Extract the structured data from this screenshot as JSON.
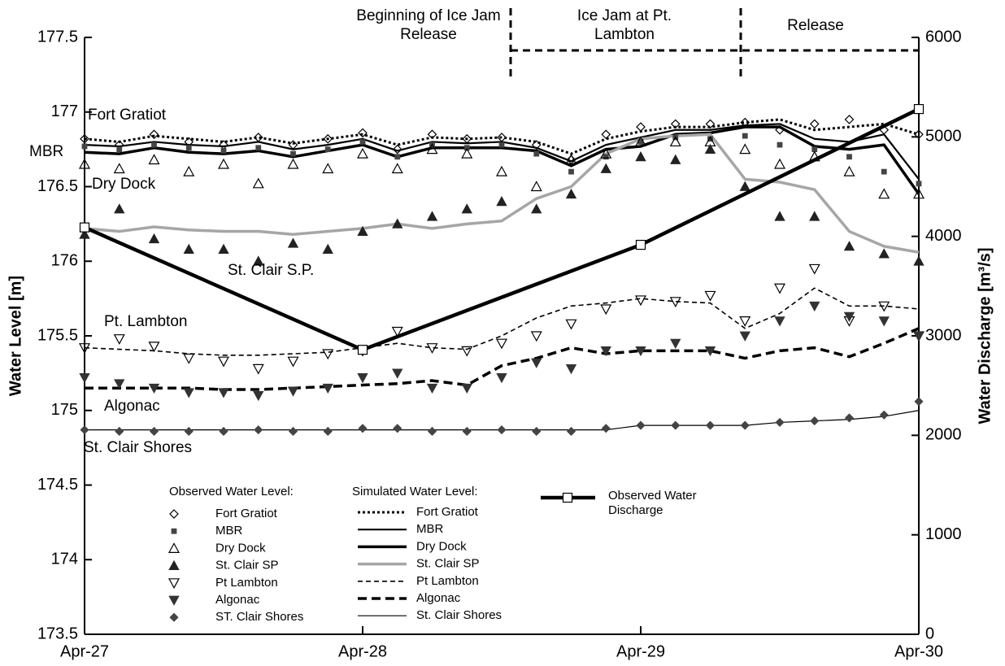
{
  "chart_data": {
    "type": "line",
    "y_title": "Water Level [m]",
    "y2_title": "Water Discharge [m³/s]",
    "phases": [
      "Beginning of Ice Jam Release",
      "Ice Jam at Pt. Lambton",
      "Release"
    ],
    "annotations": [
      "Fort Gratiot",
      "MBR",
      "Dry Dock",
      "St. Clair S.P.",
      "Pt. Lambton",
      "Algonac",
      "St. Clair Shores"
    ],
    "observed_title": "Observed Water Level:",
    "simulated_title": "Simulated Water Level:",
    "xlim": [
      0,
      72
    ],
    "xticks": [
      {
        "value": 0,
        "label": "Apr-27"
      },
      {
        "value": 24,
        "label": "Apr-28"
      },
      {
        "value": 48,
        "label": "Apr-29"
      },
      {
        "value": 72,
        "label": "Apr-30"
      }
    ],
    "ylim": [
      173.5,
      177.5
    ],
    "yticks": [
      173.5,
      174,
      174.5,
      175,
      175.5,
      176,
      176.5,
      177,
      177.5
    ],
    "y2lim": [
      0,
      6000
    ],
    "y2ticks": [
      0,
      1000,
      2000,
      3000,
      4000,
      5000,
      6000
    ],
    "x": [
      0,
      3,
      6,
      9,
      12,
      15,
      18,
      21,
      24,
      27,
      30,
      33,
      36,
      39,
      42,
      45,
      48,
      51,
      54,
      57,
      60,
      63,
      66,
      69,
      72
    ],
    "series": [
      {
        "name": "Fort Gratiot",
        "kind": "observed",
        "marker": "diamond-open",
        "color": "#000000",
        "values": [
          176.82,
          176.78,
          176.85,
          176.8,
          176.78,
          176.83,
          176.78,
          176.82,
          176.86,
          176.75,
          176.85,
          176.82,
          176.83,
          176.78,
          176.68,
          176.85,
          176.9,
          176.92,
          176.92,
          176.93,
          176.88,
          176.92,
          176.95,
          176.88,
          176.85
        ]
      },
      {
        "name": "MBR",
        "kind": "observed",
        "marker": "square",
        "color": "#444444",
        "values": [
          176.77,
          176.75,
          176.78,
          176.76,
          176.74,
          176.76,
          176.72,
          176.75,
          176.8,
          176.7,
          176.78,
          176.76,
          176.78,
          176.72,
          176.6,
          176.7,
          176.8,
          176.83,
          176.82,
          176.84,
          176.78,
          176.75,
          176.7,
          176.6,
          176.52
        ]
      },
      {
        "name": "Dry Dock",
        "kind": "observed",
        "marker": "triangle-open",
        "color": "#000000",
        "values": [
          176.65,
          176.62,
          176.68,
          176.6,
          176.65,
          176.52,
          176.65,
          176.62,
          176.72,
          176.62,
          176.75,
          176.72,
          176.6,
          176.5,
          176.68,
          176.72,
          176.8,
          176.8,
          176.8,
          176.75,
          176.65,
          176.7,
          176.6,
          176.45,
          176.45
        ]
      },
      {
        "name": "St. Clair SP",
        "kind": "observed",
        "marker": "triangle",
        "color": "#222222",
        "values": [
          176.18,
          176.35,
          176.15,
          176.08,
          176.08,
          176.0,
          176.12,
          176.08,
          176.2,
          176.25,
          176.3,
          176.35,
          176.4,
          176.35,
          176.45,
          176.62,
          176.7,
          176.68,
          176.75,
          176.5,
          176.3,
          176.3,
          176.1,
          176.05,
          176.0
        ]
      },
      {
        "name": "Pt Lambton",
        "kind": "observed",
        "marker": "triangle-down-open",
        "color": "#000000",
        "values": [
          175.42,
          175.48,
          175.43,
          175.35,
          175.33,
          175.28,
          175.33,
          175.38,
          175.4,
          175.53,
          175.42,
          175.4,
          175.45,
          175.5,
          175.58,
          175.68,
          175.74,
          175.73,
          175.77,
          175.6,
          175.82,
          175.95,
          175.6,
          175.7,
          175.5
        ]
      },
      {
        "name": "Algonac",
        "kind": "observed",
        "marker": "triangle-down",
        "color": "#333333",
        "values": [
          175.22,
          175.18,
          175.15,
          175.12,
          175.12,
          175.1,
          175.13,
          175.15,
          175.22,
          175.25,
          175.15,
          175.15,
          175.22,
          175.32,
          175.28,
          175.4,
          175.4,
          175.45,
          175.4,
          175.5,
          175.6,
          175.7,
          175.63,
          175.6,
          175.5
        ]
      },
      {
        "name": "ST. Clair Shores",
        "kind": "observed",
        "marker": "diamond",
        "color": "#444444",
        "values": [
          174.87,
          174.86,
          174.86,
          174.86,
          174.86,
          174.87,
          174.86,
          174.86,
          174.88,
          174.88,
          174.86,
          174.86,
          174.87,
          174.86,
          174.86,
          174.88,
          174.9,
          174.9,
          174.9,
          174.9,
          174.92,
          174.93,
          174.95,
          174.97,
          175.06
        ]
      },
      {
        "name": "Fort Gratiot",
        "kind": "simulated",
        "style": "dotted",
        "color": "#000000",
        "values": [
          176.82,
          176.8,
          176.84,
          176.82,
          176.8,
          176.83,
          176.79,
          176.82,
          176.85,
          176.78,
          176.83,
          176.82,
          176.83,
          176.8,
          176.72,
          176.82,
          176.87,
          176.9,
          176.9,
          176.93,
          176.95,
          176.88,
          176.9,
          176.92,
          176.85
        ]
      },
      {
        "name": "MBR",
        "kind": "simulated",
        "style": "medium",
        "color": "#000000",
        "values": [
          176.78,
          176.77,
          176.8,
          176.78,
          176.77,
          176.8,
          176.75,
          176.78,
          176.82,
          176.74,
          176.8,
          176.79,
          176.8,
          176.76,
          176.67,
          176.78,
          176.83,
          176.88,
          176.88,
          176.91,
          176.92,
          176.82,
          176.8,
          176.85,
          176.55
        ]
      },
      {
        "name": "Dry Dock",
        "kind": "simulated",
        "style": "thick",
        "color": "#000000",
        "values": [
          176.73,
          176.72,
          176.76,
          176.73,
          176.72,
          176.74,
          176.7,
          176.74,
          176.78,
          176.7,
          176.76,
          176.76,
          176.76,
          176.74,
          176.64,
          176.75,
          176.77,
          176.85,
          176.86,
          176.9,
          176.9,
          176.77,
          176.75,
          176.78,
          176.45
        ]
      },
      {
        "name": "St. Clair SP",
        "kind": "simulated",
        "style": "thick",
        "color": "#a6a6a6",
        "values": [
          176.22,
          176.2,
          176.23,
          176.21,
          176.2,
          176.2,
          176.18,
          176.2,
          176.22,
          176.25,
          176.22,
          176.25,
          176.27,
          176.42,
          176.5,
          176.72,
          176.82,
          176.84,
          176.85,
          176.55,
          176.53,
          176.48,
          176.2,
          176.1,
          176.06
        ]
      },
      {
        "name": "Pt Lambton",
        "kind": "simulated",
        "style": "dashed-thin",
        "color": "#000000",
        "values": [
          175.42,
          175.41,
          175.4,
          175.38,
          175.37,
          175.37,
          175.38,
          175.39,
          175.42,
          175.45,
          175.42,
          175.41,
          175.5,
          175.62,
          175.7,
          175.72,
          175.75,
          175.73,
          175.72,
          175.55,
          175.65,
          175.82,
          175.7,
          175.7,
          175.68
        ]
      },
      {
        "name": "Algonac",
        "kind": "simulated",
        "style": "dashed-thick",
        "color": "#000000",
        "values": [
          175.15,
          175.15,
          175.15,
          175.15,
          175.14,
          175.14,
          175.15,
          175.16,
          175.17,
          175.18,
          175.2,
          175.17,
          175.3,
          175.35,
          175.42,
          175.38,
          175.4,
          175.4,
          175.4,
          175.35,
          175.4,
          175.42,
          175.36,
          175.45,
          175.55
        ]
      },
      {
        "name": "St. Clair Shores",
        "kind": "simulated",
        "style": "thin",
        "color": "#000000",
        "values": [
          174.87,
          174.87,
          174.87,
          174.87,
          174.87,
          174.87,
          174.87,
          174.87,
          174.87,
          174.87,
          174.87,
          174.87,
          174.87,
          174.87,
          174.87,
          174.87,
          174.9,
          174.9,
          174.9,
          174.9,
          174.92,
          174.93,
          174.94,
          174.96,
          175.0
        ]
      },
      {
        "name": "Observed Water Discharge",
        "kind": "discharge",
        "axis": "y2",
        "marker": "square-open",
        "color": "#000000",
        "x": [
          0,
          24,
          48,
          72
        ],
        "values": [
          4090,
          2860,
          3915,
          5280
        ]
      }
    ]
  }
}
